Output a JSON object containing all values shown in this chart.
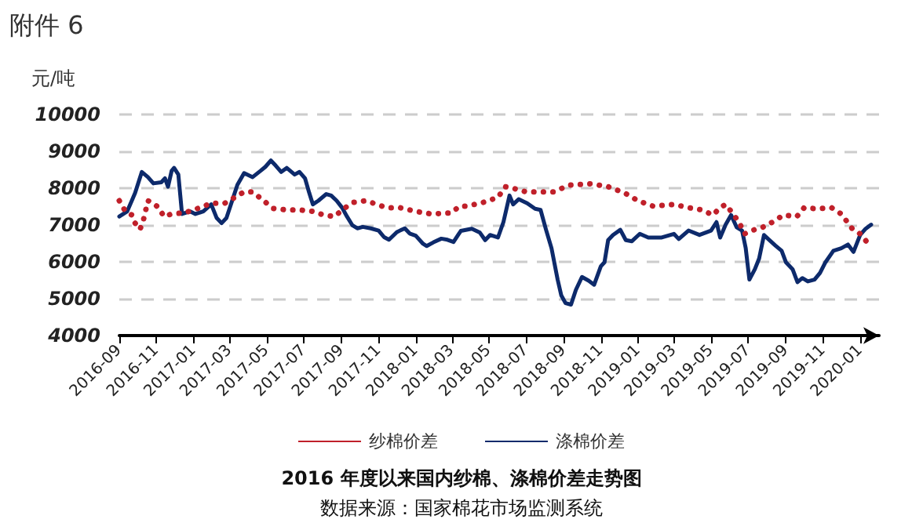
{
  "chart_data": {
    "type": "line",
    "title": "2016 年度以来国内纱棉、涤棉价差走势图",
    "ylabel": "元/吨",
    "annotations": [
      "附件 6",
      "数据来源：国家棉花市场监测系统"
    ],
    "xlim": [
      "2016-09-01",
      "2020-02-01"
    ],
    "xticks": [
      "2016-09",
      "2016-11",
      "2017-01",
      "2017-03",
      "2017-05",
      "2017-07",
      "2017-09",
      "2017-11",
      "2018-01",
      "2018-03",
      "2018-05",
      "2018-07",
      "2018-09",
      "2018-11",
      "2019-01",
      "2019-03",
      "2019-05",
      "2019-07",
      "2019-09",
      "2019-11",
      "2020-01"
    ],
    "ylim": [
      4000,
      10000
    ],
    "yticks": [
      4000,
      5000,
      6000,
      7000,
      8000,
      9000,
      10000
    ],
    "grid": "y",
    "legend": "bottom",
    "marker": "none",
    "series": [
      {
        "name": "纱棉价差",
        "color": "#c0202a",
        "line_style": "dotted",
        "x": [
          "2016-09-01",
          "2016-09-11",
          "2016-09-22",
          "2016-09-27",
          "2016-10-05",
          "2016-10-11",
          "2016-10-18",
          "2016-10-27",
          "2016-11-06",
          "2016-11-13",
          "2016-11-26",
          "2016-12-17",
          "2017-01-08",
          "2017-01-30",
          "2017-02-21",
          "2017-03-11",
          "2017-03-25",
          "2017-04-08",
          "2017-04-26",
          "2017-05-12",
          "2017-06-03",
          "2017-06-24",
          "2017-07-16",
          "2017-08-03",
          "2017-08-21",
          "2017-09-02",
          "2017-09-19",
          "2017-10-11",
          "2017-10-29",
          "2017-11-14",
          "2017-12-06",
          "2018-01-01",
          "2018-01-27",
          "2018-02-28",
          "2018-03-14",
          "2018-03-25",
          "2018-04-21",
          "2018-05-16",
          "2018-05-28",
          "2018-06-07",
          "2018-07-01",
          "2018-07-28",
          "2018-08-15",
          "2018-09-10",
          "2018-10-15",
          "2018-11-13",
          "2018-12-10",
          "2019-01-01",
          "2019-01-26",
          "2019-03-01",
          "2019-03-25",
          "2019-04-16",
          "2019-05-04",
          "2019-05-16",
          "2019-05-25",
          "2019-06-03",
          "2019-06-16",
          "2019-06-25",
          "2019-07-07",
          "2019-07-25",
          "2019-08-10",
          "2019-08-28",
          "2019-09-19",
          "2019-10-01",
          "2019-10-22",
          "2019-11-15",
          "2019-12-01",
          "2019-12-19",
          "2020-01-01",
          "2020-01-13"
        ],
        "values": [
          7660,
          7370,
          7270,
          7050,
          6880,
          7160,
          7660,
          7590,
          7450,
          7230,
          7300,
          7330,
          7450,
          7590,
          7590,
          7760,
          7900,
          7900,
          7660,
          7450,
          7410,
          7410,
          7370,
          7270,
          7230,
          7410,
          7610,
          7660,
          7560,
          7470,
          7470,
          7370,
          7300,
          7330,
          7510,
          7510,
          7610,
          7750,
          8040,
          8010,
          7900,
          7900,
          7900,
          8080,
          8120,
          8040,
          7870,
          7660,
          7510,
          7560,
          7470,
          7410,
          7270,
          7470,
          7560,
          7370,
          7080,
          6760,
          6850,
          6940,
          7080,
          7270,
          7230,
          7470,
          7440,
          7470,
          7300,
          6900,
          6760,
          6520
        ]
      },
      {
        "name": "涤棉价差",
        "color": "#0d2a6b",
        "line_style": "solid",
        "x": [
          "2016-09-01",
          "2016-09-14",
          "2016-09-27",
          "2016-10-08",
          "2016-10-18",
          "2016-10-27",
          "2016-11-09",
          "2016-11-15",
          "2016-11-20",
          "2016-11-26",
          "2016-11-30",
          "2016-12-07",
          "2016-12-13",
          "2016-12-26",
          "2017-01-04",
          "2017-01-17",
          "2017-01-30",
          "2017-02-08",
          "2017-02-16",
          "2017-02-24",
          "2017-03-04",
          "2017-03-14",
          "2017-03-25",
          "2017-04-08",
          "2017-04-21",
          "2017-04-29",
          "2017-05-08",
          "2017-05-16",
          "2017-05-25",
          "2017-06-03",
          "2017-06-16",
          "2017-06-24",
          "2017-07-03",
          "2017-07-10",
          "2017-07-16",
          "2017-07-25",
          "2017-08-07",
          "2017-08-15",
          "2017-08-24",
          "2017-09-02",
          "2017-09-10",
          "2017-09-19",
          "2017-09-27",
          "2017-10-06",
          "2017-10-19",
          "2017-11-01",
          "2017-11-10",
          "2017-11-18",
          "2017-12-01",
          "2017-12-14",
          "2017-12-22",
          "2018-01-01",
          "2018-01-13",
          "2018-01-19",
          "2018-01-30",
          "2018-02-12",
          "2018-02-22",
          "2018-03-04",
          "2018-03-12",
          "2018-03-16",
          "2018-04-03",
          "2018-04-16",
          "2018-04-25",
          "2018-05-03",
          "2018-05-16",
          "2018-05-25",
          "2018-06-04",
          "2018-06-10",
          "2018-06-19",
          "2018-07-03",
          "2018-07-16",
          "2018-07-25",
          "2018-08-03",
          "2018-08-12",
          "2018-08-22",
          "2018-08-28",
          "2018-09-04",
          "2018-09-13",
          "2018-09-21",
          "2018-10-01",
          "2018-10-12",
          "2018-10-21",
          "2018-11-01",
          "2018-11-07",
          "2018-11-13",
          "2018-11-21",
          "2018-12-03",
          "2018-12-12",
          "2018-12-22",
          "2019-01-04",
          "2019-01-18",
          "2019-02-09",
          "2019-03-01",
          "2019-03-09",
          "2019-03-25",
          "2019-04-12",
          "2019-05-01",
          "2019-05-10",
          "2019-05-16",
          "2019-05-25",
          "2019-06-03",
          "2019-06-12",
          "2019-06-21",
          "2019-06-27",
          "2019-07-03",
          "2019-07-12",
          "2019-07-19",
          "2019-07-27",
          "2019-08-03",
          "2019-08-15",
          "2019-08-25",
          "2019-09-01",
          "2019-09-12",
          "2019-09-20",
          "2019-09-28",
          "2019-10-07",
          "2019-10-18",
          "2019-10-27",
          "2019-11-05",
          "2019-11-18",
          "2019-12-01",
          "2019-12-12",
          "2019-12-21",
          "2020-01-01",
          "2020-01-10",
          "2020-01-19"
        ],
        "values": [
          7230,
          7370,
          7870,
          8440,
          8300,
          8130,
          8160,
          8270,
          8040,
          8470,
          8550,
          8370,
          7300,
          7370,
          7300,
          7370,
          7560,
          7190,
          7050,
          7190,
          7590,
          8090,
          8410,
          8300,
          8470,
          8580,
          8750,
          8610,
          8440,
          8550,
          8370,
          8440,
          8270,
          7870,
          7560,
          7660,
          7840,
          7800,
          7660,
          7470,
          7230,
          6990,
          6910,
          6950,
          6910,
          6850,
          6670,
          6600,
          6810,
          6910,
          6770,
          6710,
          6490,
          6430,
          6530,
          6630,
          6600,
          6540,
          6740,
          6840,
          6900,
          6800,
          6590,
          6730,
          6660,
          7080,
          7800,
          7560,
          7700,
          7590,
          7440,
          7410,
          6870,
          6370,
          5520,
          5090,
          4880,
          4840,
          5240,
          5590,
          5490,
          5380,
          5880,
          5990,
          6590,
          6730,
          6870,
          6590,
          6560,
          6760,
          6660,
          6660,
          6760,
          6620,
          6850,
          6730,
          6850,
          7080,
          6660,
          7010,
          7270,
          6940,
          6850,
          6370,
          5520,
          5800,
          6090,
          6730,
          6620,
          6440,
          6300,
          5990,
          5800,
          5450,
          5560,
          5470,
          5520,
          5700,
          5990,
          6300,
          6370,
          6470,
          6270,
          6730,
          6900,
          7010
        ]
      }
    ]
  }
}
